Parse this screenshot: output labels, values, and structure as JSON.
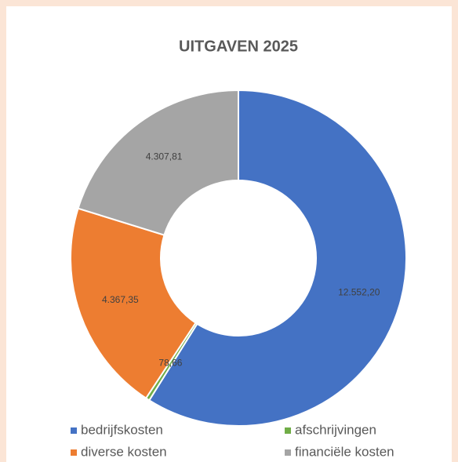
{
  "chart_data": {
    "type": "donut",
    "title": "UITGAVEN 2025",
    "categories": [
      "bedrijfskosten",
      "afschrijvingen",
      "diverse kosten",
      "financiële kosten"
    ],
    "values": [
      12552.2,
      78.66,
      4367.35,
      4307.81
    ],
    "value_labels": [
      "12.552,20",
      "78,66",
      "4.367,35",
      "4.307,81"
    ],
    "colors": [
      "#4472c4",
      "#70ad47",
      "#ed7d31",
      "#a5a5a5"
    ]
  }
}
